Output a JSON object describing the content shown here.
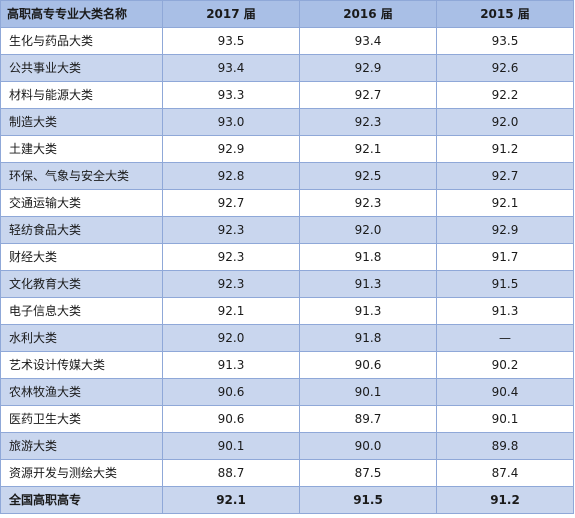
{
  "table": {
    "headers": [
      "高职高专专业大类名称",
      "2017 届",
      "2016 届",
      "2015 届"
    ],
    "rows": [
      [
        "生化与药品大类",
        "93.5",
        "93.4",
        "93.5"
      ],
      [
        "公共事业大类",
        "93.4",
        "92.9",
        "92.6"
      ],
      [
        "材料与能源大类",
        "93.3",
        "92.7",
        "92.2"
      ],
      [
        "制造大类",
        "93.0",
        "92.3",
        "92.0"
      ],
      [
        "土建大类",
        "92.9",
        "92.1",
        "91.2"
      ],
      [
        "环保、气象与安全大类",
        "92.8",
        "92.5",
        "92.7"
      ],
      [
        "交通运输大类",
        "92.7",
        "92.3",
        "92.1"
      ],
      [
        "轻纺食品大类",
        "92.3",
        "92.0",
        "92.9"
      ],
      [
        "财经大类",
        "92.3",
        "91.8",
        "91.7"
      ],
      [
        "文化教育大类",
        "92.3",
        "91.3",
        "91.5"
      ],
      [
        "电子信息大类",
        "92.1",
        "91.3",
        "91.3"
      ],
      [
        "水利大类",
        "92.0",
        "91.8",
        "—"
      ],
      [
        "艺术设计传媒大类",
        "91.3",
        "90.6",
        "90.2"
      ],
      [
        "农林牧渔大类",
        "90.6",
        "90.1",
        "90.4"
      ],
      [
        "医药卫生大类",
        "90.6",
        "89.7",
        "90.1"
      ],
      [
        "旅游大类",
        "90.1",
        "90.0",
        "89.8"
      ],
      [
        "资源开发与测绘大类",
        "88.7",
        "87.5",
        "87.4"
      ]
    ],
    "total": [
      "全国高职高专",
      "92.1",
      "91.5",
      "91.2"
    ]
  }
}
